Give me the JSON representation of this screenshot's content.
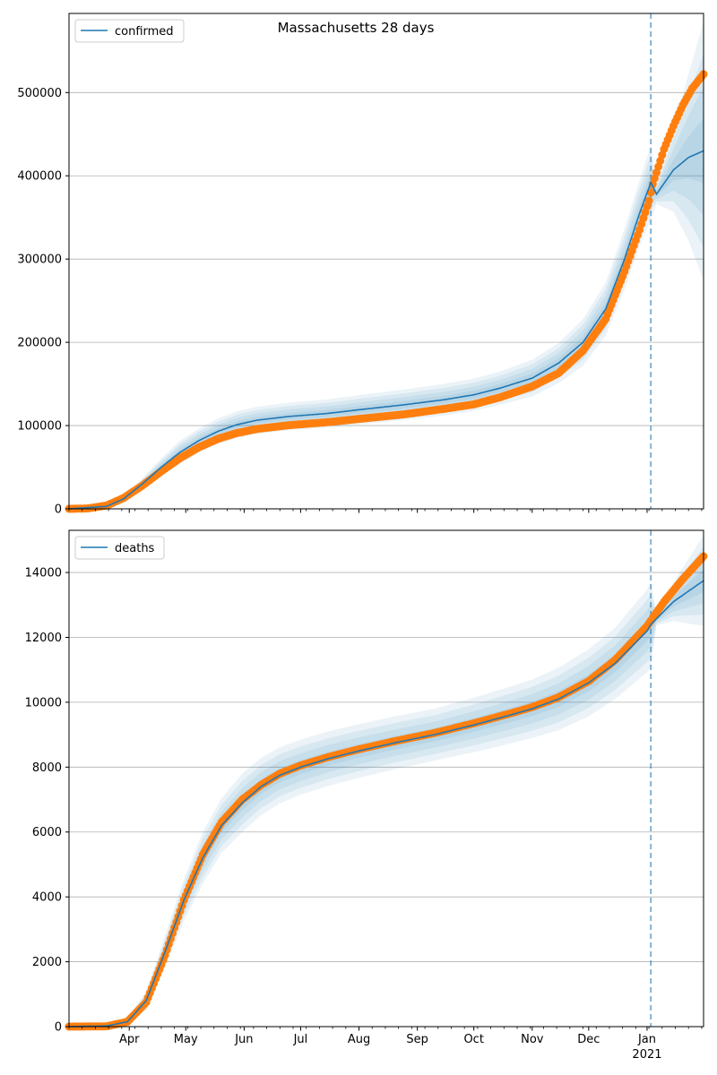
{
  "figure": {
    "title": "Massachusetts 28 days"
  },
  "chart_data": [
    {
      "type": "line",
      "name": "confirmed-panel",
      "legend": {
        "label": "confirmed",
        "placement": "top-left"
      },
      "x_range": [
        "2020-02-29",
        "2021-01-31"
      ],
      "ylim": [
        0,
        595000
      ],
      "y_ticks": [
        0,
        100000,
        200000,
        300000,
        400000,
        500000
      ],
      "y_tick_labels": [
        "0",
        "100000",
        "200000",
        "300000",
        "400000",
        "500000"
      ],
      "grid": "y",
      "forecast_start": "2021-01-03",
      "model_median": [
        [
          "2020-02-29",
          0
        ],
        [
          "2020-03-20",
          3000
        ],
        [
          "2020-03-29",
          12000
        ],
        [
          "2020-04-08",
          30000
        ],
        [
          "2020-04-18",
          50000
        ],
        [
          "2020-04-28",
          68000
        ],
        [
          "2020-05-08",
          82000
        ],
        [
          "2020-05-18",
          93000
        ],
        [
          "2020-05-28",
          101000
        ],
        [
          "2020-06-08",
          106500
        ],
        [
          "2020-06-25",
          111000
        ],
        [
          "2020-07-15",
          114500
        ],
        [
          "2020-08-01",
          119000
        ],
        [
          "2020-08-25",
          125000
        ],
        [
          "2020-09-15",
          131000
        ],
        [
          "2020-10-01",
          137000
        ],
        [
          "2020-10-15",
          145000
        ],
        [
          "2020-11-01",
          157000
        ],
        [
          "2020-11-15",
          175000
        ],
        [
          "2020-11-28",
          200000
        ],
        [
          "2020-12-10",
          240000
        ],
        [
          "2020-12-20",
          300000
        ],
        [
          "2020-12-28",
          355000
        ],
        [
          "2021-01-03",
          392000
        ],
        [
          "2021-01-06",
          378000
        ],
        [
          "2021-01-15",
          407000
        ],
        [
          "2021-01-23",
          422000
        ],
        [
          "2021-01-31",
          430000
        ]
      ],
      "band_half_widths": [
        [
          "2020-02-29",
          0
        ],
        [
          "2020-03-20",
          1000
        ],
        [
          "2020-04-08",
          7000
        ],
        [
          "2020-04-28",
          14000
        ],
        [
          "2020-05-28",
          16000
        ],
        [
          "2020-07-15",
          17000
        ],
        [
          "2020-09-15",
          19000
        ],
        [
          "2020-10-15",
          20000
        ],
        [
          "2020-11-15",
          24000
        ],
        [
          "2020-12-10",
          32000
        ],
        [
          "2020-12-28",
          40000
        ],
        [
          "2021-01-03",
          45000
        ],
        [
          "2021-01-06",
          12000
        ],
        [
          "2021-01-15",
          50000
        ],
        [
          "2021-01-23",
          100000
        ],
        [
          "2021-01-31",
          155000
        ]
      ],
      "band_scales": [
        1.0,
        0.75,
        0.5,
        0.25
      ],
      "observed": [
        [
          "2020-02-29",
          0
        ],
        [
          "2020-03-10",
          500
        ],
        [
          "2020-03-20",
          4000
        ],
        [
          "2020-03-29",
          13000
        ],
        [
          "2020-04-08",
          28000
        ],
        [
          "2020-04-18",
          45000
        ],
        [
          "2020-04-28",
          61000
        ],
        [
          "2020-05-08",
          74000
        ],
        [
          "2020-05-18",
          84000
        ],
        [
          "2020-05-28",
          91000
        ],
        [
          "2020-06-08",
          96000
        ],
        [
          "2020-06-25",
          100500
        ],
        [
          "2020-07-15",
          104000
        ],
        [
          "2020-08-01",
          108000
        ],
        [
          "2020-08-25",
          113500
        ],
        [
          "2020-09-15",
          120000
        ],
        [
          "2020-10-01",
          125500
        ],
        [
          "2020-10-15",
          134000
        ],
        [
          "2020-11-01",
          147000
        ],
        [
          "2020-11-15",
          163000
        ],
        [
          "2020-11-28",
          190000
        ],
        [
          "2020-12-10",
          228000
        ],
        [
          "2020-12-20",
          285000
        ],
        [
          "2020-12-28",
          335000
        ],
        [
          "2021-01-02",
          370000
        ],
        [
          "2021-01-04",
          390000
        ],
        [
          "2021-01-10",
          432000
        ],
        [
          "2021-01-15",
          460000
        ],
        [
          "2021-01-20",
          485000
        ],
        [
          "2021-01-25",
          505000
        ],
        [
          "2021-01-31",
          522000
        ]
      ]
    },
    {
      "type": "line",
      "name": "deaths-panel",
      "legend": {
        "label": "deaths",
        "placement": "top-left"
      },
      "x_range": [
        "2020-02-29",
        "2021-01-31"
      ],
      "x_ticks": [
        "2020-04-01",
        "2020-05-01",
        "2020-06-01",
        "2020-07-01",
        "2020-08-01",
        "2020-09-01",
        "2020-10-01",
        "2020-11-01",
        "2020-12-01",
        "2021-01-01"
      ],
      "x_tick_labels": [
        "Apr",
        "May",
        "Jun",
        "Jul",
        "Aug",
        "Sep",
        "Oct",
        "Nov",
        "Dec",
        "Jan"
      ],
      "x_year_label": "2021",
      "ylim": [
        0,
        15300
      ],
      "y_ticks": [
        0,
        2000,
        4000,
        6000,
        8000,
        10000,
        12000,
        14000
      ],
      "y_tick_labels": [
        "0",
        "2000",
        "4000",
        "6000",
        "8000",
        "10000",
        "12000",
        "14000"
      ],
      "grid": "y",
      "forecast_start": "2021-01-03",
      "model_median": [
        [
          "2020-02-29",
          0
        ],
        [
          "2020-03-20",
          20
        ],
        [
          "2020-03-31",
          150
        ],
        [
          "2020-04-10",
          800
        ],
        [
          "2020-04-20",
          2300
        ],
        [
          "2020-04-30",
          3900
        ],
        [
          "2020-05-10",
          5200
        ],
        [
          "2020-05-20",
          6200
        ],
        [
          "2020-05-31",
          6900
        ],
        [
          "2020-06-10",
          7400
        ],
        [
          "2020-06-20",
          7750
        ],
        [
          "2020-07-01",
          8000
        ],
        [
          "2020-07-15",
          8250
        ],
        [
          "2020-08-01",
          8500
        ],
        [
          "2020-08-20",
          8750
        ],
        [
          "2020-09-10",
          9000
        ],
        [
          "2020-10-01",
          9300
        ],
        [
          "2020-10-20",
          9600
        ],
        [
          "2020-11-01",
          9800
        ],
        [
          "2020-11-15",
          10100
        ],
        [
          "2020-12-01",
          10600
        ],
        [
          "2020-12-15",
          11200
        ],
        [
          "2021-01-01",
          12200
        ],
        [
          "2021-01-03",
          12400
        ],
        [
          "2021-01-15",
          13100
        ],
        [
          "2021-01-31",
          13750
        ]
      ],
      "band_half_widths": [
        [
          "2020-02-29",
          0
        ],
        [
          "2020-03-31",
          100
        ],
        [
          "2020-04-20",
          500
        ],
        [
          "2020-05-10",
          800
        ],
        [
          "2020-05-31",
          900
        ],
        [
          "2020-07-01",
          850
        ],
        [
          "2020-09-10",
          800
        ],
        [
          "2020-11-01",
          900
        ],
        [
          "2020-12-15",
          1100
        ],
        [
          "2021-01-03",
          1300
        ],
        [
          "2021-01-06",
          200
        ],
        [
          "2021-01-15",
          600
        ],
        [
          "2021-01-31",
          1400
        ]
      ],
      "band_scales": [
        1.0,
        0.75,
        0.5,
        0.25
      ],
      "observed": [
        [
          "2020-02-29",
          0
        ],
        [
          "2020-03-20",
          10
        ],
        [
          "2020-03-31",
          150
        ],
        [
          "2020-04-10",
          750
        ],
        [
          "2020-04-20",
          2200
        ],
        [
          "2020-04-30",
          3900
        ],
        [
          "2020-05-10",
          5300
        ],
        [
          "2020-05-20",
          6300
        ],
        [
          "2020-05-31",
          7000
        ],
        [
          "2020-06-10",
          7450
        ],
        [
          "2020-06-20",
          7800
        ],
        [
          "2020-07-01",
          8050
        ],
        [
          "2020-07-15",
          8300
        ],
        [
          "2020-08-01",
          8550
        ],
        [
          "2020-08-20",
          8800
        ],
        [
          "2020-09-10",
          9050
        ],
        [
          "2020-10-01",
          9350
        ],
        [
          "2020-10-20",
          9650
        ],
        [
          "2020-11-01",
          9850
        ],
        [
          "2020-11-15",
          10150
        ],
        [
          "2020-12-01",
          10650
        ],
        [
          "2020-12-15",
          11300
        ],
        [
          "2021-01-01",
          12350
        ],
        [
          "2021-01-10",
          13100
        ],
        [
          "2021-01-20",
          13800
        ],
        [
          "2021-01-31",
          14500
        ]
      ]
    }
  ],
  "colors": {
    "model_line": "#1f77b4",
    "band": "#1f77b4",
    "observed": "#ff7f0e",
    "grid": "#b0b0b0",
    "forecast_line": "#1f77b4"
  }
}
